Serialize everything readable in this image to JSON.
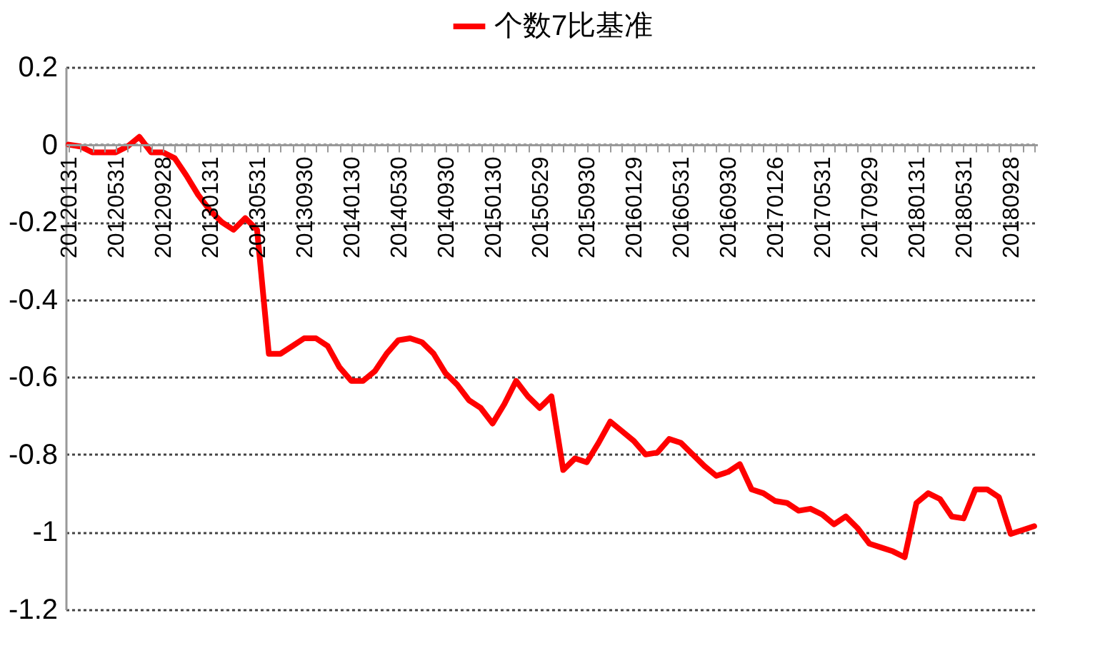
{
  "chart_data": {
    "type": "line",
    "categories": [
      "20120131",
      null,
      null,
      null,
      "20120531",
      null,
      null,
      null,
      "20120928",
      null,
      null,
      null,
      "20130131",
      null,
      null,
      null,
      "20130531",
      null,
      null,
      null,
      "20130930",
      null,
      null,
      null,
      "20140130",
      null,
      null,
      null,
      "20140530",
      null,
      null,
      null,
      "20140930",
      null,
      null,
      null,
      "20150130",
      null,
      null,
      null,
      "20150529",
      null,
      null,
      null,
      "20150930",
      null,
      null,
      null,
      "20160129",
      null,
      null,
      null,
      "20160531",
      null,
      null,
      null,
      "20160930",
      null,
      null,
      null,
      "20170126",
      null,
      null,
      null,
      "20170531",
      null,
      null,
      null,
      "20170929",
      null,
      null,
      null,
      "20180131",
      null,
      null,
      null,
      "20180531",
      null,
      null,
      null,
      "20180928",
      null,
      null
    ],
    "series": [
      {
        "name": "个数7比基准",
        "color": "#ff0000",
        "values": [
          0,
          -0.005,
          -0.02,
          -0.02,
          -0.02,
          -0.005,
          0.02,
          -0.02,
          -0.02,
          -0.035,
          -0.08,
          -0.13,
          -0.17,
          -0.2,
          -0.22,
          -0.19,
          -0.22,
          -0.54,
          -0.54,
          -0.52,
          -0.5,
          -0.5,
          -0.52,
          -0.575,
          -0.61,
          -0.61,
          -0.585,
          -0.54,
          -0.505,
          -0.5,
          -0.51,
          -0.54,
          -0.59,
          -0.62,
          -0.66,
          -0.68,
          -0.72,
          -0.67,
          -0.61,
          -0.65,
          -0.68,
          -0.65,
          -0.84,
          -0.81,
          -0.82,
          -0.77,
          -0.715,
          -0.74,
          -0.765,
          -0.8,
          -0.795,
          -0.76,
          -0.77,
          -0.8,
          -0.83,
          -0.855,
          -0.845,
          -0.825,
          -0.89,
          -0.9,
          -0.92,
          -0.925,
          -0.945,
          -0.94,
          -0.955,
          -0.98,
          -0.96,
          -0.99,
          -1.03,
          -1.04,
          -1.05,
          -1.065,
          -0.925,
          -0.9,
          -0.915,
          -0.96,
          -0.965,
          -0.89,
          -0.89,
          -0.91,
          -1.005,
          -0.995,
          -0.985
        ]
      }
    ],
    "ylim": [
      -1.2,
      0.2
    ],
    "yticks": [
      -1.2,
      -1,
      -0.8,
      -0.6,
      -0.4,
      -0.2,
      0,
      0.2
    ],
    "grid": "y",
    "legend": "top",
    "line_style": "solid",
    "marker": "none"
  }
}
